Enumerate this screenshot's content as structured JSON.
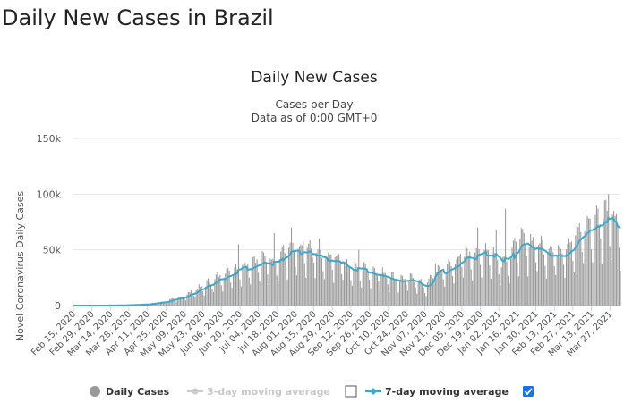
{
  "page": {
    "title": "Daily New Cases in Brazil"
  },
  "chart_data": {
    "type": "bar",
    "title": "Daily New Cases",
    "subtitle_lines": [
      "Cases per Day",
      "Data as of 0:00 GMT+0"
    ],
    "ylabel": "Novel Coronavirus Daily Cases",
    "xlabel": "",
    "ylim": [
      0,
      150000
    ],
    "yticks": [
      0,
      50000,
      100000,
      150000
    ],
    "ytick_labels": [
      "0",
      "50k",
      "100k",
      "150k"
    ],
    "x_start": "2020-02-15",
    "x_end": "2021-04-04",
    "xtick_labels": [
      "Feb 15, 2020",
      "Feb 29, 2020",
      "Mar 14, 2020",
      "Mar 28, 2020",
      "Apr 11, 2020",
      "Apr 25, 2020",
      "May 09, 2020",
      "May 23, 2020",
      "Jun 06, 2020",
      "Jun 20, 2020",
      "Jul 04, 2020",
      "Jul 18, 2020",
      "Aug 01, 2020",
      "Aug 15, 2020",
      "Aug 29, 2020",
      "Sep 12, 2020",
      "Sep 26, 2020",
      "Oct 10, 2020",
      "Oct 24, 2020",
      "Nov 07, 2020",
      "Nov 21, 2020",
      "Dec 05, 2020",
      "Dec 19, 2020",
      "Jan 02, 2021",
      "Jan 16, 2021",
      "Jan 30, 2021",
      "Feb 13, 2021",
      "Feb 27, 2021",
      "Mar 13, 2021",
      "Mar 27, 2021"
    ],
    "grid": true,
    "legend_position": "bottom",
    "series": [
      {
        "name": "Daily Cases",
        "kind": "bar",
        "color": "#999999",
        "weekly_average_anchors": [
          {
            "date": "2020-02-15",
            "value": 0
          },
          {
            "date": "2020-03-14",
            "value": 50
          },
          {
            "date": "2020-03-28",
            "value": 400
          },
          {
            "date": "2020-04-11",
            "value": 1200
          },
          {
            "date": "2020-04-25",
            "value": 3500
          },
          {
            "date": "2020-05-09",
            "value": 8000
          },
          {
            "date": "2020-05-23",
            "value": 16000
          },
          {
            "date": "2020-06-06",
            "value": 25000
          },
          {
            "date": "2020-06-20",
            "value": 32000
          },
          {
            "date": "2020-07-04",
            "value": 38000
          },
          {
            "date": "2020-07-11",
            "value": 37000
          },
          {
            "date": "2020-07-18",
            "value": 38000
          },
          {
            "date": "2020-07-25",
            "value": 46000
          },
          {
            "date": "2020-08-01",
            "value": 45000
          },
          {
            "date": "2020-08-15",
            "value": 45000
          },
          {
            "date": "2020-08-22",
            "value": 40000
          },
          {
            "date": "2020-09-05",
            "value": 40000
          },
          {
            "date": "2020-09-12",
            "value": 31000
          },
          {
            "date": "2020-09-26",
            "value": 30000
          },
          {
            "date": "2020-10-10",
            "value": 25000
          },
          {
            "date": "2020-10-17",
            "value": 22000
          },
          {
            "date": "2020-10-31",
            "value": 22000
          },
          {
            "date": "2020-11-07",
            "value": 15000
          },
          {
            "date": "2020-11-14",
            "value": 26000
          },
          {
            "date": "2020-11-21",
            "value": 30000
          },
          {
            "date": "2020-11-28",
            "value": 34000
          },
          {
            "date": "2020-12-05",
            "value": 42000
          },
          {
            "date": "2020-12-19",
            "value": 44000
          },
          {
            "date": "2020-12-26",
            "value": 48000
          },
          {
            "date": "2021-01-02",
            "value": 36000
          },
          {
            "date": "2021-01-09",
            "value": 37000
          },
          {
            "date": "2021-01-16",
            "value": 53000
          },
          {
            "date": "2021-01-30",
            "value": 52000
          },
          {
            "date": "2021-02-06",
            "value": 48000
          },
          {
            "date": "2021-02-13",
            "value": 45000
          },
          {
            "date": "2021-02-27",
            "value": 52000
          },
          {
            "date": "2021-03-06",
            "value": 65000
          },
          {
            "date": "2021-03-13",
            "value": 70000
          },
          {
            "date": "2021-03-20",
            "value": 74000
          },
          {
            "date": "2021-03-27",
            "value": 76000
          },
          {
            "date": "2021-04-01",
            "value": 72000
          },
          {
            "date": "2021-04-04",
            "value": 63000
          }
        ],
        "peaks": [
          {
            "date": "2020-06-19",
            "value": 55000
          },
          {
            "date": "2020-07-16",
            "value": 65000
          },
          {
            "date": "2020-07-29",
            "value": 70000
          },
          {
            "date": "2020-08-07",
            "value": 58000
          },
          {
            "date": "2020-08-19",
            "value": 60000
          },
          {
            "date": "2020-09-18",
            "value": 50000
          },
          {
            "date": "2020-11-15",
            "value": 38000
          },
          {
            "date": "2020-12-17",
            "value": 70000
          },
          {
            "date": "2020-12-31",
            "value": 68000
          },
          {
            "date": "2021-01-07",
            "value": 87000
          },
          {
            "date": "2021-01-21",
            "value": 65000
          },
          {
            "date": "2021-03-10",
            "value": 80000
          },
          {
            "date": "2021-03-17",
            "value": 90000
          },
          {
            "date": "2021-03-24",
            "value": 95000
          },
          {
            "date": "2021-03-26",
            "value": 100000
          }
        ]
      },
      {
        "name": "3-day moving average",
        "kind": "line",
        "color": "#cccccc",
        "enabled": false
      },
      {
        "name": "7-day moving average",
        "kind": "line",
        "color": "#3fa7c7",
        "enabled": true
      }
    ]
  }
}
